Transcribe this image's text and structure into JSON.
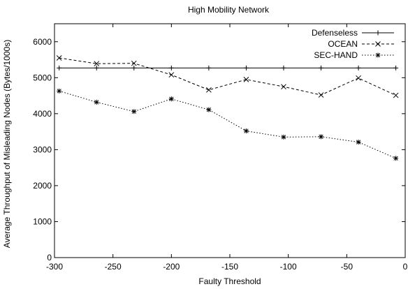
{
  "chart_data": {
    "type": "line",
    "title": "High Mobility Network",
    "xlabel": "Faulty Threshold",
    "ylabel": "Average Throughput of Misleading Nodes (Bytes/1000s)",
    "xlim": [
      -300,
      0
    ],
    "ylim": [
      0,
      6500
    ],
    "xticks": [
      -300,
      -250,
      -200,
      -150,
      -100,
      -50,
      0
    ],
    "yticks": [
      0,
      1000,
      2000,
      3000,
      4000,
      5000,
      6000
    ],
    "grid": false,
    "legend_position": "top-right",
    "x": [
      -296,
      -264,
      -232,
      -200,
      -168,
      -136,
      -104,
      -72,
      -40,
      -8
    ],
    "series": [
      {
        "name": "Defenseless",
        "marker": "plus",
        "dash": "solid",
        "values": [
          5270,
          5270,
          5270,
          5270,
          5270,
          5270,
          5270,
          5270,
          5270,
          5270
        ]
      },
      {
        "name": "OCEAN",
        "marker": "cross",
        "dash": "dashed",
        "values": [
          5550,
          5390,
          5400,
          5080,
          4660,
          4950,
          4750,
          4520,
          4990,
          4510
        ]
      },
      {
        "name": "SEC-HAND",
        "marker": "star",
        "dash": "dotted",
        "values": [
          4630,
          4320,
          4060,
          4410,
          4110,
          3520,
          3350,
          3360,
          3210,
          2760
        ]
      }
    ]
  }
}
